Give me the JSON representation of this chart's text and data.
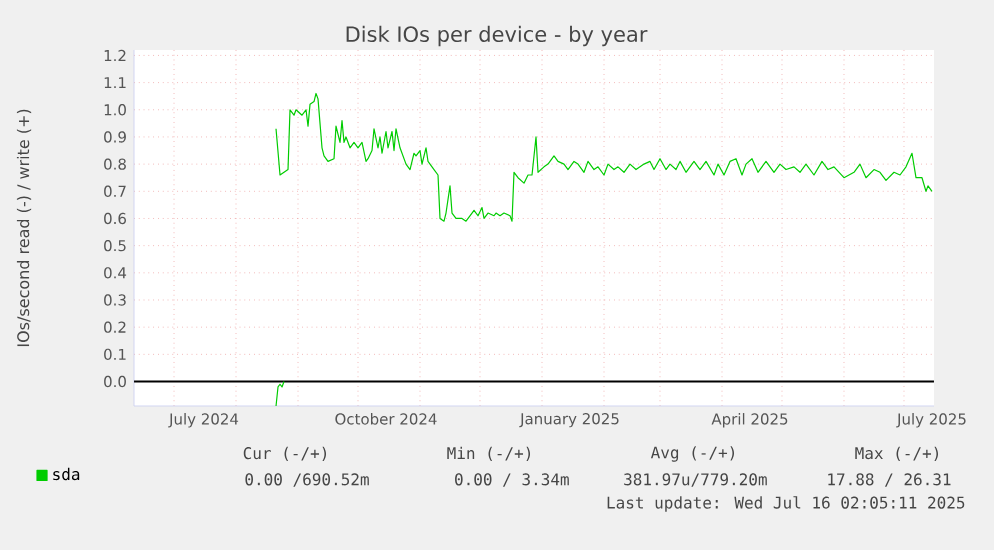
{
  "chart_data": {
    "type": "line",
    "title": "Disk IOs per device - by year",
    "ylabel": "IOs/second read (-) / write (+)",
    "xlim": [
      "2024-06-11",
      "2025-07-16"
    ],
    "ylim": [
      -0.09,
      1.22
    ],
    "xticks": [
      {
        "value": "2024-07-01",
        "label": null
      },
      {
        "value": "2024-08-01",
        "label": null
      },
      {
        "value": "2024-09-01",
        "label": null
      },
      {
        "value": "2024-10-01",
        "label": null
      },
      {
        "value": "2024-11-01",
        "label": null
      },
      {
        "value": "2024-12-01",
        "label": null
      },
      {
        "value": "2025-01-01",
        "label": null
      },
      {
        "value": "2025-02-01",
        "label": null
      },
      {
        "value": "2025-03-01",
        "label": null
      },
      {
        "value": "2025-04-01",
        "label": null
      },
      {
        "value": "2025-05-01",
        "label": null
      },
      {
        "value": "2025-06-01",
        "label": null
      },
      {
        "value": "2025-07-01",
        "label": null
      },
      {
        "value": "2024-07-16",
        "label": "July 2024"
      },
      {
        "value": "2024-10-15",
        "label": "October 2024"
      },
      {
        "value": "2025-01-15",
        "label": "January 2025"
      },
      {
        "value": "2025-04-15",
        "label": "April 2025"
      },
      {
        "value": "2025-07-15",
        "label": "July 2025"
      }
    ],
    "yticks": [
      {
        "value": 0,
        "label": "0.0"
      },
      {
        "value": 0.1,
        "label": "0.1"
      },
      {
        "value": 0.2,
        "label": "0.2"
      },
      {
        "value": 0.3,
        "label": "0.3"
      },
      {
        "value": 0.4,
        "label": "0.4"
      },
      {
        "value": 0.5,
        "label": "0.5"
      },
      {
        "value": 0.6,
        "label": "0.6"
      },
      {
        "value": 0.7,
        "label": "0.7"
      },
      {
        "value": 0.8,
        "label": "0.8"
      },
      {
        "value": 0.9,
        "label": "0.9"
      },
      {
        "value": 1.0,
        "label": "1.0"
      },
      {
        "value": 1.1,
        "label": "1.1"
      },
      {
        "value": 1.2,
        "label": "1.2"
      }
    ],
    "grid": true,
    "legend": "bottom left",
    "ref_lines": [
      {
        "axis": "y",
        "value": 0,
        "color": "#000000"
      }
    ],
    "series": [
      {
        "name": "sda",
        "color": "#00cc00",
        "x": [
          "2024-08-21",
          "2024-08-23",
          "2024-08-25",
          "2024-08-27",
          "2024-08-28",
          "2024-08-30",
          "2024-08-31",
          "2024-09-03",
          "2024-09-05",
          "2024-09-06",
          "2024-09-07",
          "2024-09-09",
          "2024-09-10",
          "2024-09-11",
          "2024-09-13",
          "2024-09-14",
          "2024-09-16",
          "2024-09-19",
          "2024-09-20",
          "2024-09-22",
          "2024-09-23",
          "2024-09-24",
          "2024-09-25",
          "2024-09-27",
          "2024-09-29",
          "2024-10-01",
          "2024-10-03",
          "2024-10-05",
          "2024-10-06",
          "2024-10-08",
          "2024-10-09",
          "2024-10-11",
          "2024-10-12",
          "2024-10-13",
          "2024-10-15",
          "2024-10-16",
          "2024-10-18",
          "2024-10-19",
          "2024-10-20",
          "2024-10-22",
          "2024-10-23",
          "2024-10-25",
          "2024-10-27",
          "2024-10-29",
          "2024-10-30",
          "2024-11-01",
          "2024-11-02",
          "2024-11-04",
          "2024-11-05",
          "2024-11-07",
          "2024-11-08",
          "2024-11-10",
          "2024-11-11",
          "2024-11-13",
          "2024-11-14",
          "2024-11-16",
          "2024-11-17",
          "2024-11-19",
          "2024-11-22",
          "2024-11-24",
          "2024-11-27",
          "2024-11-28",
          "2024-11-30",
          "2024-12-02",
          "2024-12-03",
          "2024-12-05",
          "2024-12-08",
          "2024-12-09",
          "2024-12-11",
          "2024-12-13",
          "2024-12-16",
          "2024-12-17",
          "2024-12-18",
          "2024-12-20",
          "2024-12-23",
          "2024-12-25",
          "2024-12-27",
          "2024-12-29",
          "2024-12-30",
          "2025-01-02",
          "2025-01-04",
          "2025-01-07",
          "2025-01-09",
          "2025-01-12",
          "2025-01-14",
          "2025-01-17",
          "2025-01-19",
          "2025-01-22",
          "2025-01-24",
          "2025-01-27",
          "2025-01-29",
          "2025-02-01",
          "2025-02-03",
          "2025-02-06",
          "2025-02-08",
          "2025-02-11",
          "2025-02-14",
          "2025-02-17",
          "2025-02-21",
          "2025-02-24",
          "2025-02-26",
          "2025-03-01",
          "2025-03-04",
          "2025-03-06",
          "2025-03-09",
          "2025-03-11",
          "2025-03-14",
          "2025-03-18",
          "2025-03-21",
          "2025-03-24",
          "2025-03-28",
          "2025-03-30",
          "2025-04-02",
          "2025-04-05",
          "2025-04-08",
          "2025-04-11",
          "2025-04-13",
          "2025-04-16",
          "2025-04-19",
          "2025-04-23",
          "2025-04-27",
          "2025-04-30",
          "2025-05-03",
          "2025-05-07",
          "2025-05-10",
          "2025-05-13",
          "2025-05-17",
          "2025-05-21",
          "2025-05-24",
          "2025-05-27",
          "2025-06-01",
          "2025-06-06",
          "2025-06-09",
          "2025-06-12",
          "2025-06-16",
          "2025-06-19",
          "2025-06-22",
          "2025-06-26",
          "2025-06-29",
          "2025-07-02",
          "2025-07-05",
          "2025-07-07",
          "2025-07-10",
          "2025-07-12",
          "2025-07-13",
          "2025-07-15"
        ],
        "values": [
          0.93,
          0.76,
          0.77,
          0.78,
          1.0,
          0.98,
          1.0,
          0.98,
          1.0,
          0.94,
          1.02,
          1.03,
          1.06,
          1.04,
          0.86,
          0.83,
          0.81,
          0.82,
          0.94,
          0.88,
          0.96,
          0.88,
          0.9,
          0.86,
          0.88,
          0.86,
          0.88,
          0.81,
          0.82,
          0.85,
          0.93,
          0.86,
          0.9,
          0.84,
          0.92,
          0.86,
          0.92,
          0.85,
          0.93,
          0.86,
          0.84,
          0.8,
          0.78,
          0.84,
          0.83,
          0.85,
          0.8,
          0.86,
          0.81,
          0.79,
          0.78,
          0.76,
          0.6,
          0.59,
          0.62,
          0.72,
          0.62,
          0.6,
          0.6,
          0.59,
          0.62,
          0.63,
          0.61,
          0.64,
          0.6,
          0.62,
          0.61,
          0.62,
          0.61,
          0.62,
          0.61,
          0.59,
          0.77,
          0.75,
          0.73,
          0.76,
          0.76,
          0.9,
          0.77,
          0.79,
          0.8,
          0.83,
          0.81,
          0.8,
          0.78,
          0.81,
          0.8,
          0.77,
          0.81,
          0.78,
          0.79,
          0.76,
          0.8,
          0.78,
          0.79,
          0.77,
          0.8,
          0.78,
          0.8,
          0.81,
          0.78,
          0.82,
          0.78,
          0.8,
          0.78,
          0.81,
          0.77,
          0.81,
          0.78,
          0.81,
          0.76,
          0.8,
          0.76,
          0.81,
          0.82,
          0.76,
          0.8,
          0.82,
          0.77,
          0.81,
          0.77,
          0.8,
          0.78,
          0.79,
          0.77,
          0.8,
          0.76,
          0.81,
          0.78,
          0.79,
          0.75,
          0.77,
          0.8,
          0.75,
          0.78,
          0.77,
          0.74,
          0.77,
          0.76,
          0.79,
          0.84,
          0.75,
          0.75,
          0.7,
          0.72,
          0.7
        ]
      },
      {
        "color": "#00cc00",
        "x": [
          "2024-08-21",
          "2024-08-22",
          "2024-08-23",
          "2024-08-24",
          "2024-08-25"
        ],
        "values": [
          -0.09,
          -0.02,
          -0.01,
          -0.02,
          0.0
        ]
      }
    ],
    "annotations": [
      "Cur (-/+)",
      "Min (-/+)",
      "Avg (-/+)",
      "Max (-/+)",
      "0.00 /690.52m",
      "0.00 /  3.34m",
      "381.97u/779.20m",
      "17.88 / 26.31",
      "Last update: Wed Jul 16 02:05:11 2025"
    ]
  }
}
